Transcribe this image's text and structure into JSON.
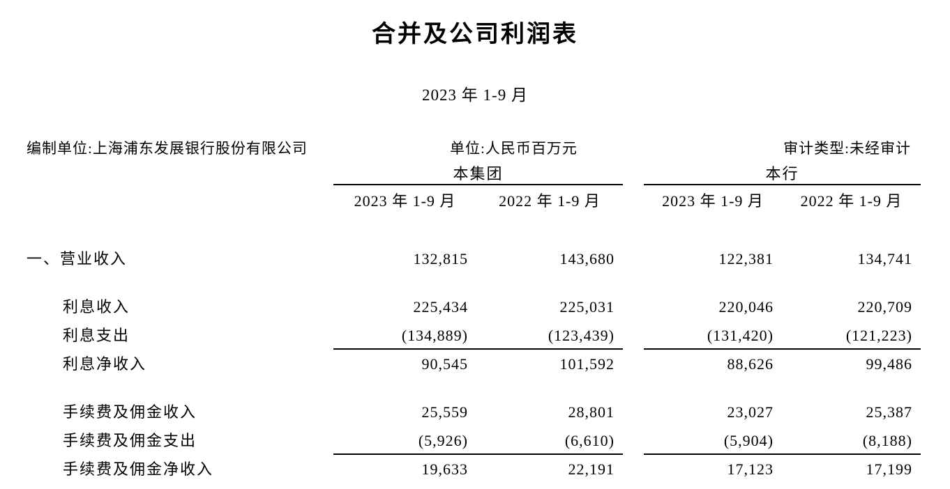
{
  "document": {
    "title": "合并及公司利润表",
    "period": "2023 年 1-9 月",
    "prepared_by": "编制单位:上海浦东发展银行股份有限公司",
    "unit": "单位:人民币百万元",
    "audit_type": "审计类型:未经审计",
    "group_headers": [
      "本集团",
      "本行"
    ],
    "column_headers": [
      "2023 年 1-9 月",
      "2022 年 1-9 月",
      "2023 年 1-9 月",
      "2022 年 1-9 月"
    ],
    "rows": [
      {
        "label": "一、营业收入",
        "indent": 0,
        "spacer_before": false,
        "underline_after": false,
        "values": [
          "132,815",
          "143,680",
          "122,381",
          "134,741"
        ]
      },
      {
        "label": "利息收入",
        "indent": 1,
        "spacer_before": true,
        "underline_after": false,
        "values": [
          "225,434",
          "225,031",
          "220,046",
          "220,709"
        ]
      },
      {
        "label": "利息支出",
        "indent": 1,
        "spacer_before": false,
        "underline_after": true,
        "values": [
          "(134,889)",
          "(123,439)",
          "(131,420)",
          "(121,223)"
        ]
      },
      {
        "label": "利息净收入",
        "indent": 1,
        "spacer_before": false,
        "underline_after": false,
        "values": [
          "90,545",
          "101,592",
          "88,626",
          "99,486"
        ]
      },
      {
        "label": "手续费及佣金收入",
        "indent": 1,
        "spacer_before": true,
        "underline_after": false,
        "values": [
          "25,559",
          "28,801",
          "23,027",
          "25,387"
        ]
      },
      {
        "label": "手续费及佣金支出",
        "indent": 1,
        "spacer_before": false,
        "underline_after": true,
        "values": [
          "(5,926)",
          "(6,610)",
          "(5,904)",
          "(8,188)"
        ]
      },
      {
        "label": "手续费及佣金净收入",
        "indent": 1,
        "spacer_before": false,
        "underline_after": false,
        "values": [
          "19,633",
          "22,191",
          "17,123",
          "17,199"
        ]
      }
    ]
  },
  "colors": {
    "background": "#ffffff",
    "text": "#000000",
    "rule": "#000000"
  }
}
